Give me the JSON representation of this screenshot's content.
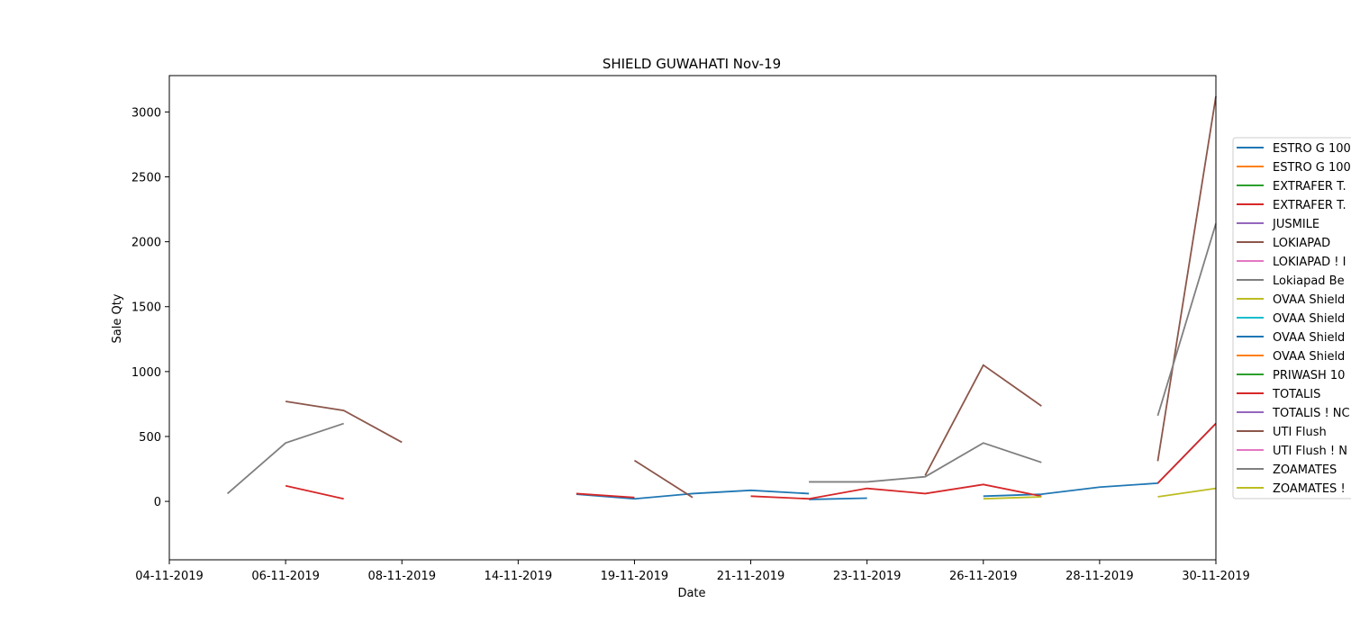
{
  "chart_data": {
    "type": "line",
    "title": "SHIELD GUWAHATI Nov-19",
    "xlabel": "Date",
    "ylabel": "Sale Qty",
    "categories": [
      "04-11-2019",
      "05-11-2019",
      "06-11-2019",
      "07-11-2019",
      "08-11-2019",
      "12-11-2019",
      "14-11-2019",
      "15-11-2019",
      "19-11-2019",
      "20-11-2019",
      "21-11-2019",
      "22-11-2019",
      "23-11-2019",
      "25-11-2019",
      "26-11-2019",
      "27-11-2019",
      "28-11-2019",
      "29-11-2019",
      "30-11-2019"
    ],
    "x_tick_labels": [
      "04-11-2019",
      "06-11-2019",
      "08-11-2019",
      "14-11-2019",
      "19-11-2019",
      "21-11-2019",
      "23-11-2019",
      "26-11-2019",
      "28-11-2019",
      "30-11-2019"
    ],
    "y_ticks": [
      0,
      500,
      1000,
      1500,
      2000,
      2500,
      3000
    ],
    "ylim": [
      -450,
      3280
    ],
    "grid": false,
    "legend_position": "right, outside plot (clipped)",
    "series": [
      {
        "name": "ESTRO G 100",
        "color": "#1f77b4",
        "values": [
          null,
          null,
          null,
          null,
          null,
          null,
          null,
          55,
          20,
          60,
          85,
          60,
          null,
          null,
          null,
          null,
          null,
          null,
          null
        ]
      },
      {
        "name": "ESTRO G 100",
        "color": "#ff7f0e",
        "values": [
          null,
          null,
          null,
          null,
          null,
          null,
          null,
          null,
          null,
          null,
          null,
          null,
          null,
          null,
          null,
          null,
          null,
          null,
          null
        ]
      },
      {
        "name": "EXTRAFER T.",
        "color": "#2ca02c",
        "values": [
          null,
          null,
          null,
          null,
          null,
          null,
          null,
          null,
          null,
          null,
          null,
          null,
          null,
          null,
          null,
          null,
          null,
          null,
          null
        ]
      },
      {
        "name": "EXTRAFER T.",
        "color": "#d62728",
        "values": [
          null,
          null,
          120,
          20,
          null,
          null,
          null,
          60,
          30,
          null,
          40,
          20,
          null,
          null,
          null,
          null,
          null,
          null,
          null
        ]
      },
      {
        "name": "JUSMILE",
        "color": "#9467bd",
        "values": [
          null,
          null,
          null,
          null,
          null,
          null,
          null,
          null,
          null,
          null,
          null,
          null,
          null,
          null,
          null,
          null,
          null,
          null,
          null
        ]
      },
      {
        "name": "LOKIAPAD",
        "color": "#8c564b",
        "values": [
          null,
          null,
          770,
          700,
          455,
          null,
          null,
          null,
          315,
          30,
          null,
          null,
          null,
          null,
          null,
          null,
          null,
          null,
          null
        ]
      },
      {
        "name": "LOKIAPAD ! I",
        "color": "#e377c2",
        "values": [
          null,
          null,
          null,
          null,
          null,
          null,
          null,
          null,
          null,
          null,
          null,
          null,
          null,
          null,
          null,
          null,
          null,
          null,
          null
        ]
      },
      {
        "name": "Lokiapad Be",
        "color": "#7f7f7f",
        "values": [
          null,
          60,
          450,
          600,
          null,
          null,
          null,
          null,
          null,
          null,
          null,
          null,
          null,
          null,
          null,
          null,
          null,
          null,
          null
        ]
      },
      {
        "name": "OVAA Shield",
        "color": "#bcbd22",
        "values": [
          null,
          null,
          null,
          null,
          null,
          null,
          null,
          null,
          null,
          null,
          null,
          null,
          null,
          null,
          null,
          null,
          null,
          null,
          null
        ]
      },
      {
        "name": "OVAA Shield",
        "color": "#17becf",
        "values": [
          null,
          null,
          null,
          null,
          null,
          null,
          null,
          null,
          null,
          null,
          null,
          null,
          null,
          null,
          null,
          null,
          null,
          null,
          null
        ]
      },
      {
        "name": "OVAA Shield",
        "color": "#1f77b4",
        "values": [
          null,
          null,
          null,
          null,
          null,
          null,
          null,
          null,
          null,
          null,
          null,
          15,
          25,
          null,
          40,
          55,
          110,
          140,
          600
        ]
      },
      {
        "name": "OVAA Shield",
        "color": "#ff7f0e",
        "values": [
          null,
          null,
          null,
          null,
          null,
          null,
          null,
          null,
          null,
          null,
          null,
          null,
          null,
          null,
          null,
          null,
          null,
          null,
          null
        ]
      },
      {
        "name": "PRIWASH 10",
        "color": "#2ca02c",
        "values": [
          null,
          null,
          null,
          null,
          null,
          null,
          null,
          null,
          null,
          null,
          null,
          null,
          null,
          null,
          null,
          null,
          null,
          null,
          null
        ]
      },
      {
        "name": "TOTALIS",
        "color": "#d62728",
        "values": [
          null,
          null,
          null,
          null,
          null,
          null,
          null,
          null,
          null,
          null,
          null,
          20,
          100,
          60,
          130,
          40,
          null,
          140,
          600
        ]
      },
      {
        "name": "TOTALIS ! NC",
        "color": "#9467bd",
        "values": [
          null,
          null,
          null,
          null,
          null,
          null,
          null,
          null,
          null,
          null,
          null,
          null,
          null,
          null,
          null,
          null,
          null,
          null,
          null
        ]
      },
      {
        "name": "UTI Flush",
        "color": "#8c564b",
        "values": [
          null,
          null,
          null,
          null,
          null,
          null,
          null,
          null,
          null,
          null,
          null,
          null,
          null,
          200,
          1050,
          735,
          null,
          310,
          3120
        ]
      },
      {
        "name": "UTI Flush ! N",
        "color": "#e377c2",
        "values": [
          null,
          null,
          null,
          null,
          null,
          null,
          null,
          null,
          null,
          null,
          null,
          null,
          null,
          null,
          null,
          null,
          null,
          null,
          null
        ]
      },
      {
        "name": "ZOAMATES",
        "color": "#7f7f7f",
        "values": [
          null,
          null,
          null,
          null,
          null,
          null,
          null,
          null,
          null,
          null,
          null,
          150,
          150,
          190,
          450,
          300,
          null,
          660,
          2140
        ]
      },
      {
        "name": "ZOAMATES !",
        "color": "#bcbd22",
        "values": [
          null,
          null,
          null,
          null,
          null,
          null,
          null,
          null,
          null,
          null,
          null,
          null,
          null,
          null,
          20,
          35,
          null,
          35,
          100
        ]
      }
    ]
  }
}
